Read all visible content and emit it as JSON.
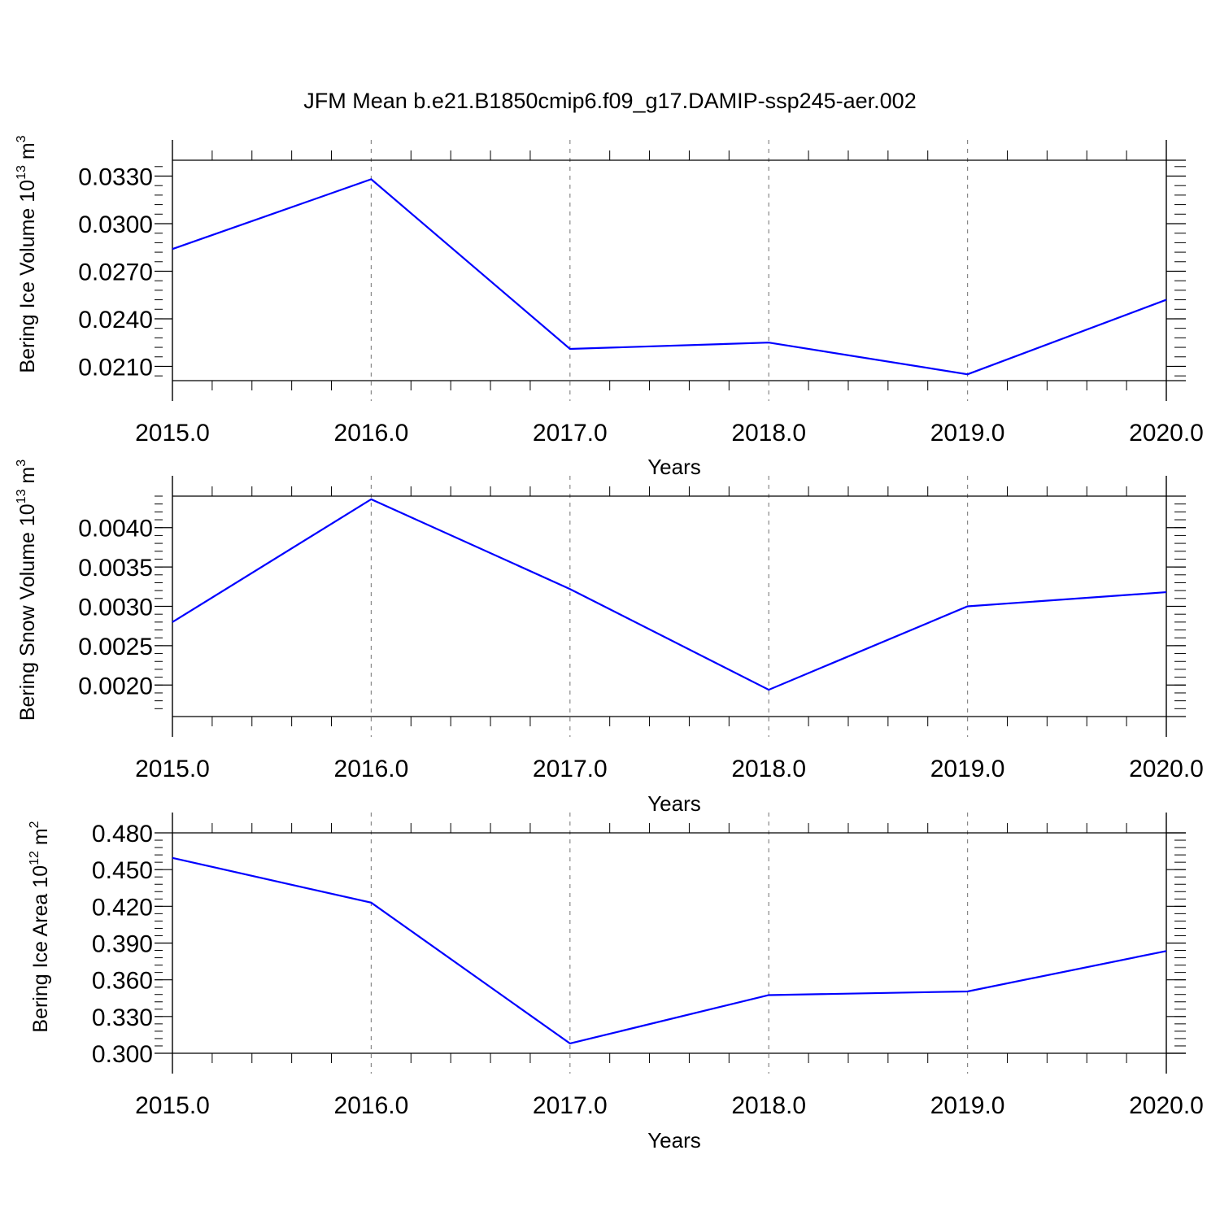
{
  "title": "JFM Mean b.e21.B1850cmip6.f09_g17.DAMIP-ssp245-aer.002",
  "colors": {
    "line": "#0000ff",
    "axis": "#000000",
    "grid": "#888888"
  },
  "chart_data": [
    {
      "type": "line",
      "xlabel": "Years",
      "ylabel": {
        "text": "Bering Ice Volume 10",
        "exp": "13",
        "unit": " m",
        "unit_exp": "3"
      },
      "x": [
        2015,
        2016,
        2017,
        2018,
        2019,
        2020
      ],
      "x_tick_labels": [
        "2015.0",
        "2016.0",
        "2017.0",
        "2018.0",
        "2019.0",
        "2020.0"
      ],
      "values": [
        0.0284,
        0.0328,
        0.0221,
        0.0225,
        0.0205,
        0.0252
      ],
      "y_ticks": [
        0.021,
        0.024,
        0.027,
        0.03,
        0.033
      ],
      "y_tick_labels": [
        "0.0210",
        "0.0240",
        "0.0270",
        "0.0300",
        "0.0330"
      ],
      "xlim": [
        2015,
        2020
      ],
      "ylim": [
        0.0201,
        0.034
      ],
      "grid": "vertical dashed"
    },
    {
      "type": "line",
      "xlabel": "Years",
      "ylabel": {
        "text": "Bering Snow Volume 10",
        "exp": "13",
        "unit": " m",
        "unit_exp": "3"
      },
      "x": [
        2015,
        2016,
        2017,
        2018,
        2019,
        2020
      ],
      "x_tick_labels": [
        "2015.0",
        "2016.0",
        "2017.0",
        "2018.0",
        "2019.0",
        "2020.0"
      ],
      "values": [
        0.0028,
        0.00436,
        0.00322,
        0.00194,
        0.003,
        0.00318
      ],
      "y_ticks": [
        0.002,
        0.0025,
        0.003,
        0.0035,
        0.004
      ],
      "y_tick_labels": [
        "0.0020",
        "0.0025",
        "0.0030",
        "0.0035",
        "0.0040"
      ],
      "xlim": [
        2015,
        2020
      ],
      "ylim": [
        0.0016,
        0.0044
      ],
      "grid": "vertical dashed"
    },
    {
      "type": "line",
      "xlabel": "Years",
      "ylabel": {
        "text": "Bering Ice Area 10",
        "exp": "12",
        "unit": " m",
        "unit_exp": "2"
      },
      "x": [
        2015,
        2016,
        2017,
        2018,
        2019,
        2020
      ],
      "x_tick_labels": [
        "2015.0",
        "2016.0",
        "2017.0",
        "2018.0",
        "2019.0",
        "2020.0"
      ],
      "values": [
        0.4595,
        0.423,
        0.308,
        0.3475,
        0.3505,
        0.3835
      ],
      "y_ticks": [
        0.3,
        0.33,
        0.36,
        0.39,
        0.42,
        0.45,
        0.48
      ],
      "y_tick_labels": [
        "0.300",
        "0.330",
        "0.360",
        "0.390",
        "0.420",
        "0.450",
        "0.480"
      ],
      "xlim": [
        2015,
        2020
      ],
      "ylim": [
        0.3,
        0.48
      ],
      "grid": "vertical dashed"
    }
  ]
}
